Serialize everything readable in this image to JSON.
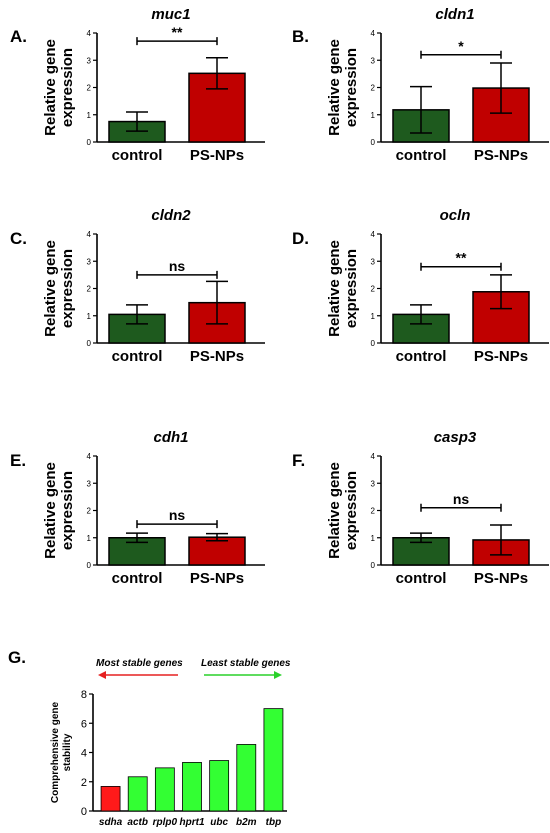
{
  "colors": {
    "control": "#1e5a1e",
    "treated": "#c00000",
    "stable": "#ff1a1a",
    "other": "#33ff33",
    "arrow_left": "#e52020",
    "arrow_right": "#2ad12a"
  },
  "chart_data": [
    {
      "panel": "A.",
      "type": "bar",
      "title": "muc1",
      "ylabel_lines": [
        "Relative gene",
        "expression"
      ],
      "categories": [
        "control",
        "PS-NPs"
      ],
      "values": [
        0.75,
        2.52
      ],
      "errors": [
        0.35,
        0.57
      ],
      "ylim": [
        0,
        4
      ],
      "yticks": [
        "0",
        "1",
        "2",
        "3",
        "4"
      ],
      "significance": "**",
      "bracket_y": 3.7
    },
    {
      "panel": "B.",
      "type": "bar",
      "title": "cldn1",
      "ylabel_lines": [
        "Relative gene",
        "expression"
      ],
      "categories": [
        "control",
        "PS-NPs"
      ],
      "values": [
        1.18,
        1.98
      ],
      "errors": [
        0.85,
        0.92
      ],
      "ylim": [
        0,
        4
      ],
      "yticks": [
        "0",
        "1",
        "2",
        "3",
        "4"
      ],
      "significance": "*",
      "bracket_y": 3.2
    },
    {
      "panel": "C.",
      "type": "bar",
      "title": "cldn2",
      "ylabel_lines": [
        "Relative gene",
        "expression"
      ],
      "categories": [
        "control",
        "PS-NPs"
      ],
      "values": [
        1.05,
        1.48
      ],
      "errors": [
        0.35,
        0.78
      ],
      "ylim": [
        0,
        4
      ],
      "yticks": [
        "0",
        "1",
        "2",
        "3",
        "4"
      ],
      "significance": "ns",
      "bracket_y": 2.5
    },
    {
      "panel": "D.",
      "type": "bar",
      "title": "ocln",
      "ylabel_lines": [
        "Relative gene",
        "expression"
      ],
      "categories": [
        "control",
        "PS-NPs"
      ],
      "values": [
        1.05,
        1.88
      ],
      "errors": [
        0.35,
        0.62
      ],
      "ylim": [
        0,
        4
      ],
      "yticks": [
        "0",
        "1",
        "2",
        "3",
        "4"
      ],
      "significance": "**",
      "bracket_y": 2.8
    },
    {
      "panel": "E.",
      "type": "bar",
      "title": "cdh1",
      "ylabel_lines": [
        "Relative gene",
        "expression"
      ],
      "categories": [
        "control",
        "PS-NPs"
      ],
      "values": [
        1.0,
        1.02
      ],
      "errors": [
        0.17,
        0.13
      ],
      "ylim": [
        0,
        4
      ],
      "yticks": [
        "0",
        "1",
        "2",
        "3",
        "4"
      ],
      "significance": "ns",
      "bracket_y": 1.5
    },
    {
      "panel": "F.",
      "type": "bar",
      "title": "casp3",
      "ylabel_lines": [
        "Relative gene",
        "expression"
      ],
      "categories": [
        "control",
        "PS-NPs"
      ],
      "values": [
        1.0,
        0.92
      ],
      "errors": [
        0.17,
        0.55
      ],
      "ylim": [
        0,
        4
      ],
      "yticks": [
        "0",
        "1",
        "2",
        "3",
        "4"
      ],
      "significance": "ns",
      "bracket_y": 2.1
    },
    {
      "panel": "G.",
      "type": "bar",
      "title": "",
      "ylabel_lines": [
        "Comprehensive gene",
        "stability"
      ],
      "categories": [
        "sdha",
        "actb",
        "rplp0",
        "hprt1",
        "ubc",
        "b2m",
        "tbp"
      ],
      "values": [
        1.68,
        2.34,
        2.95,
        3.32,
        3.45,
        4.55,
        7.0
      ],
      "ylim": [
        0,
        8
      ],
      "yticks": [
        "0",
        "2",
        "4",
        "6",
        "8"
      ],
      "annotations": [
        "Most stable genes",
        "Least stable genes"
      ]
    }
  ]
}
